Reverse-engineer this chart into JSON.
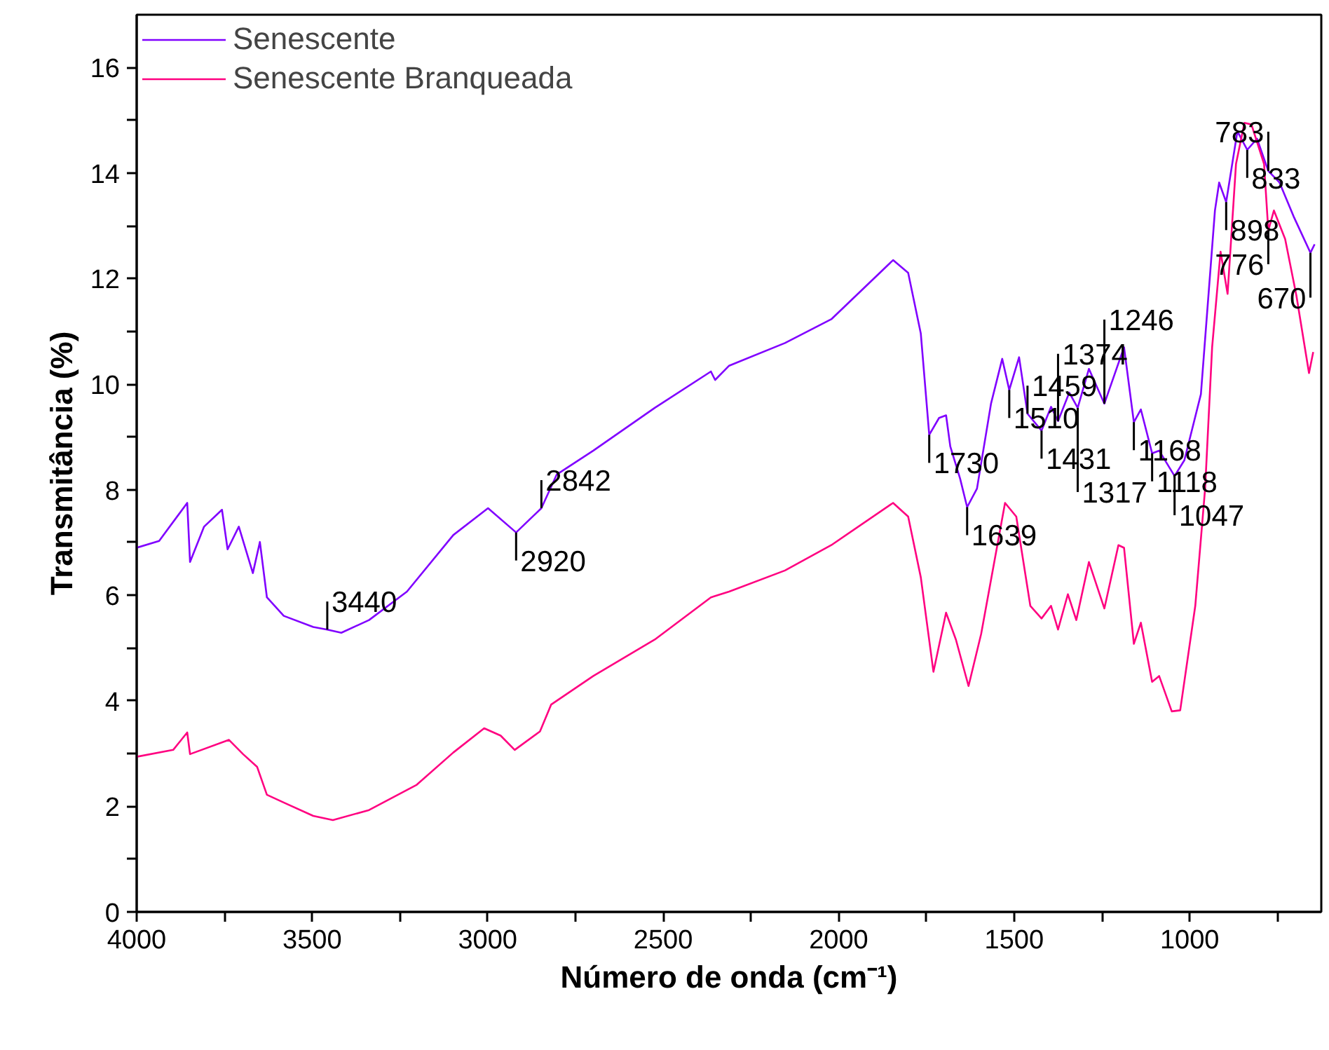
{
  "chart_data": {
    "type": "line",
    "xlabel": "Número de onda (cm⁻¹)",
    "ylabel": "Transmitância (%)",
    "xlim": [
      4000,
      625
    ],
    "ylim": [
      0,
      17
    ],
    "xticks": [
      4000,
      {
        "value": 3750,
        "label": null
      },
      3500,
      {
        "value": 3250,
        "label": null
      },
      3000,
      {
        "value": 2750,
        "label": null
      },
      2500,
      {
        "value": 2250,
        "label": null
      },
      2000,
      {
        "value": 1750,
        "label": null
      },
      1500,
      {
        "value": 1250,
        "label": null
      },
      1000,
      {
        "value": 750,
        "label": null
      }
    ],
    "yticks": [
      0,
      {
        "value": 1,
        "label": null
      },
      2,
      {
        "value": 3,
        "label": null
      },
      4,
      {
        "value": 5,
        "label": null
      },
      6,
      {
        "value": 7,
        "label": null
      },
      8,
      {
        "value": 9,
        "label": null
      },
      10,
      {
        "value": 11,
        "label": null
      },
      12,
      {
        "value": 13,
        "label": null
      },
      14,
      {
        "value": 15,
        "label": null
      },
      16
    ],
    "grid": false,
    "legend": "top left",
    "marker": "none",
    "line_style": "solid",
    "series": [
      {
        "name": "Senescente",
        "color": "#8000ff",
        "x": [
          4000,
          3936,
          3856,
          3848,
          3808,
          3757,
          3741,
          3709,
          3669,
          3649,
          3629,
          3581,
          3497,
          3457,
          3417,
          3338,
          3230,
          3098,
          2999,
          2919,
          2847,
          2803,
          2699,
          2524,
          2364,
          2352,
          2312,
          2153,
          2021,
          1845,
          1802,
          1766,
          1742,
          1714,
          1694,
          1682,
          1654,
          1634,
          1606,
          1566,
          1534,
          1514,
          1486,
          1462,
          1422,
          1395,
          1375,
          1343,
          1319,
          1287,
          1243,
          1187,
          1159,
          1139,
          1107,
          1087,
          1043,
          1015,
          968,
          928,
          916,
          896,
          864,
          836,
          808,
          776,
          744,
          704,
          656,
          644
        ],
        "values": [
          6.9,
          7.03,
          7.75,
          6.63,
          7.3,
          7.62,
          6.87,
          7.3,
          6.42,
          7.01,
          5.96,
          5.61,
          5.4,
          5.35,
          5.29,
          5.53,
          6.07,
          7.14,
          7.65,
          7.19,
          7.65,
          8.29,
          8.74,
          9.55,
          10.24,
          10.08,
          10.35,
          10.78,
          11.23,
          12.35,
          12.11,
          10.96,
          9.04,
          9.36,
          9.41,
          8.82,
          8.21,
          7.67,
          8.02,
          9.63,
          10.48,
          9.89,
          10.51,
          9.44,
          9.12,
          9.57,
          9.3,
          9.84,
          9.55,
          10.29,
          9.63,
          10.7,
          9.28,
          9.52,
          8.69,
          8.74,
          8.26,
          8.56,
          9.81,
          13.29,
          13.82,
          13.45,
          14.79,
          14.44,
          14.65,
          14.04,
          13.82,
          13.18,
          12.49,
          12.65
        ]
      },
      {
        "name": "Senescente Branqueada",
        "color": "#ff0080",
        "x": [
          4000,
          3896,
          3856,
          3848,
          3737,
          3697,
          3657,
          3629,
          3577,
          3497,
          3441,
          3338,
          3202,
          3098,
          3010,
          2963,
          2923,
          2851,
          2819,
          2699,
          2524,
          2364,
          2312,
          2153,
          2021,
          1845,
          1802,
          1766,
          1730,
          1694,
          1666,
          1630,
          1594,
          1526,
          1494,
          1454,
          1422,
          1395,
          1375,
          1347,
          1323,
          1287,
          1243,
          1203,
          1187,
          1159,
          1139,
          1107,
          1087,
          1051,
          1027,
          984,
          956,
          936,
          912,
          892,
          868,
          844,
          824,
          788,
          776,
          760,
          728,
          696,
          660,
          648
        ],
        "values": [
          2.94,
          3.07,
          3.4,
          2.99,
          3.26,
          2.99,
          2.75,
          2.22,
          2.06,
          1.82,
          1.74,
          1.93,
          2.41,
          3.02,
          3.48,
          3.34,
          3.07,
          3.42,
          3.93,
          4.47,
          5.16,
          5.96,
          6.07,
          6.47,
          6.95,
          7.75,
          7.49,
          6.34,
          4.55,
          5.67,
          5.16,
          4.28,
          5.27,
          7.75,
          7.49,
          5.8,
          5.56,
          5.8,
          5.35,
          6.02,
          5.53,
          6.63,
          5.75,
          6.95,
          6.9,
          5.08,
          5.48,
          4.36,
          4.47,
          3.8,
          3.82,
          5.8,
          8.02,
          10.7,
          12.51,
          11.71,
          14.17,
          14.95,
          14.92,
          14.17,
          12.91,
          13.29,
          12.75,
          11.68,
          10.21,
          10.61
        ]
      }
    ],
    "annotations": [
      {
        "text": "3440",
        "x": 3457,
        "y": 5.35
      },
      {
        "text": "2920",
        "x": 2919,
        "y": 7.19
      },
      {
        "text": "2842",
        "x": 2847,
        "y": 7.65
      },
      {
        "text": "1730",
        "x": 1742,
        "y": 9.04
      },
      {
        "text": "1639",
        "x": 1634,
        "y": 7.67
      },
      {
        "text": "1510",
        "x": 1514,
        "y": 9.89
      },
      {
        "text": "1459",
        "x": 1462,
        "y": 9.44
      },
      {
        "text": "1431",
        "x": 1422,
        "y": 9.12
      },
      {
        "text": "1374",
        "x": 1375,
        "y": 9.3
      },
      {
        "text": "1317",
        "x": 1319,
        "y": 9.55
      },
      {
        "text": "1246",
        "x": 1243,
        "y": 9.63
      },
      {
        "text": "1168",
        "x": 1159,
        "y": 9.28
      },
      {
        "text": "1118",
        "x": 1107,
        "y": 8.69
      },
      {
        "text": "1047",
        "x": 1043,
        "y": 8.26
      },
      {
        "text": "898",
        "x": 896,
        "y": 13.45
      },
      {
        "text": "833",
        "x": 836,
        "y": 14.44
      },
      {
        "text": "783",
        "x": 776,
        "y": 14.04
      },
      {
        "text": "776",
        "x": 776,
        "y": 12.91
      },
      {
        "text": "670",
        "x": 656,
        "y": 12.49
      }
    ]
  }
}
